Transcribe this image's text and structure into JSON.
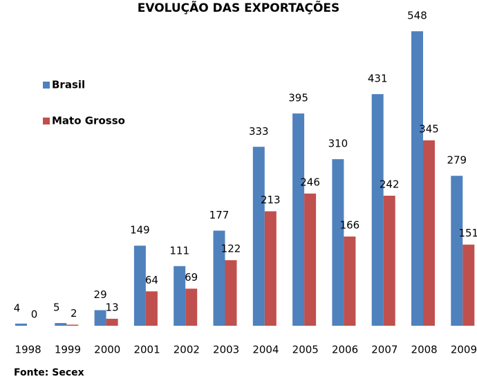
{
  "chart_data": {
    "type": "bar",
    "title": "EVOLUÇÃO DAS EXPORTAÇÕES",
    "categories": [
      "1998",
      "1999",
      "2000",
      "2001",
      "2002",
      "2003",
      "2004",
      "2005",
      "2006",
      "2007",
      "2008",
      "2009"
    ],
    "series": [
      {
        "name": "Brasil",
        "color": "#4f81bd",
        "values": [
          4,
          5,
          29,
          149,
          111,
          177,
          333,
          395,
          310,
          431,
          548,
          279
        ]
      },
      {
        "name": "Mato Grosso",
        "color": "#c0504d",
        "values": [
          0,
          2,
          13,
          64,
          69,
          122,
          213,
          246,
          166,
          242,
          345,
          151
        ]
      }
    ],
    "source": "Fonte: Secex"
  }
}
